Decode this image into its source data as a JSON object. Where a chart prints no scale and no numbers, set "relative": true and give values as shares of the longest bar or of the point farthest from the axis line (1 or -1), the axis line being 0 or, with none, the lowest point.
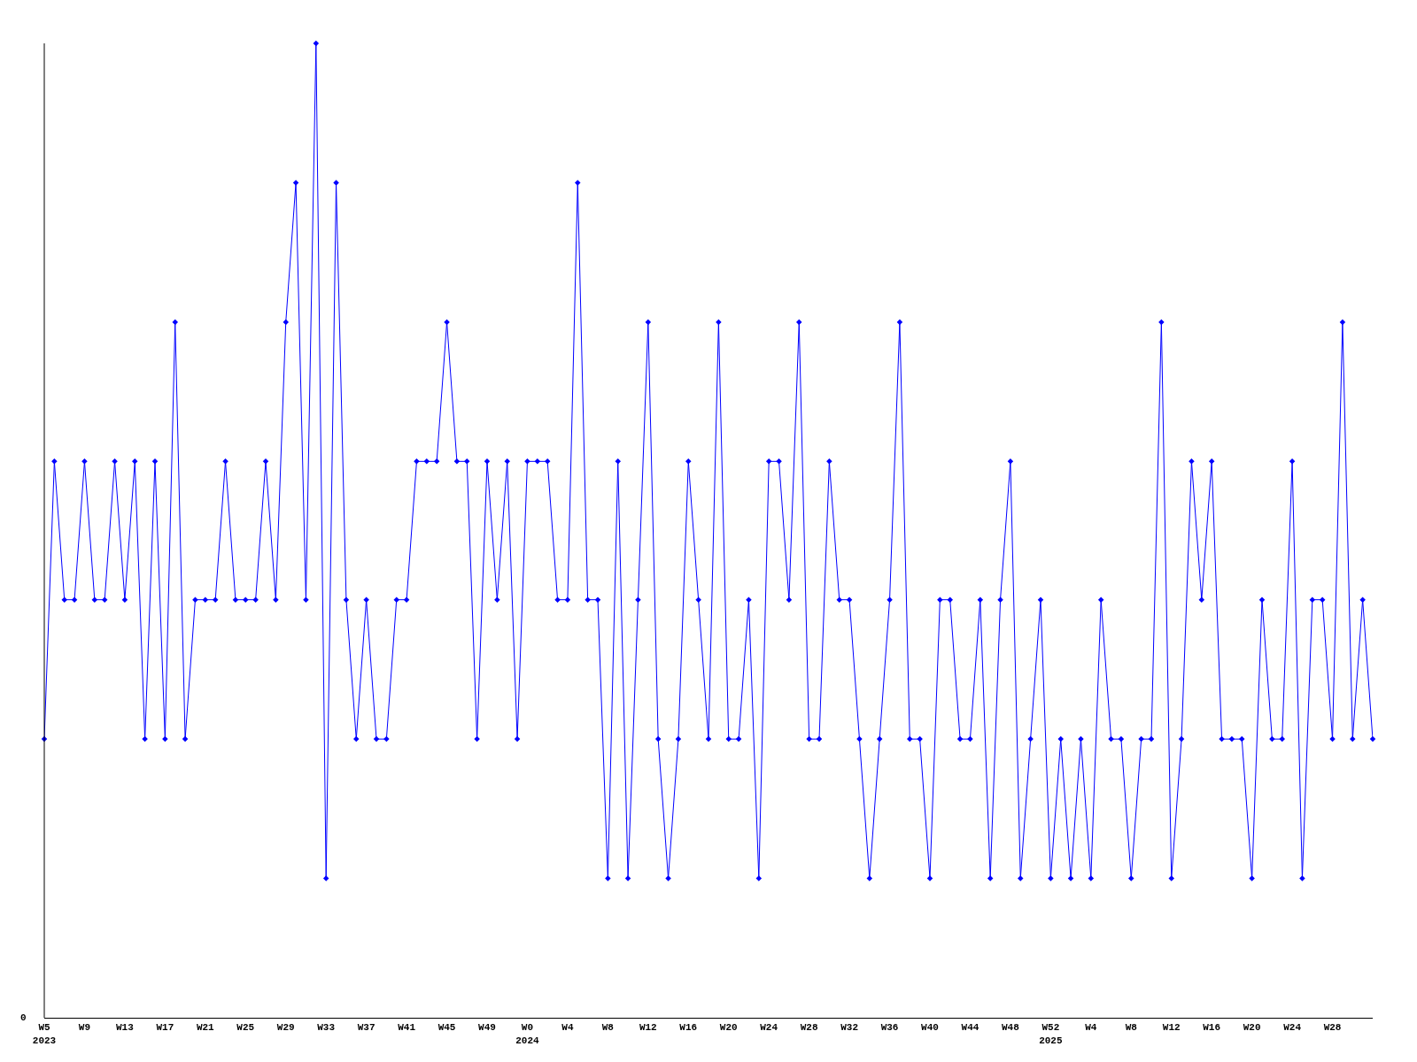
{
  "chart_data": {
    "type": "line",
    "relative": true,
    "color": "#0000ff",
    "marker": "diamond",
    "line_style": "solid",
    "grid": false,
    "annotations": [
      "0"
    ],
    "categories": [
      "W5\n2023",
      null,
      null,
      null,
      "W9",
      null,
      null,
      null,
      "W13",
      null,
      null,
      null,
      "W17",
      null,
      null,
      null,
      "W21",
      null,
      null,
      null,
      "W25",
      null,
      null,
      null,
      "W29",
      null,
      null,
      null,
      "W33",
      null,
      null,
      null,
      "W37",
      null,
      null,
      null,
      "W41",
      null,
      null,
      null,
      "W45",
      null,
      null,
      null,
      "W49",
      null,
      null,
      null,
      "W0\n2024",
      null,
      null,
      null,
      "W4",
      null,
      null,
      null,
      "W8",
      null,
      null,
      null,
      "W12",
      null,
      null,
      null,
      "W16",
      null,
      null,
      null,
      "W20",
      null,
      null,
      null,
      "W24",
      null,
      null,
      null,
      "W28",
      null,
      null,
      null,
      "W32",
      null,
      null,
      null,
      "W36",
      null,
      null,
      null,
      "W40",
      null,
      null,
      null,
      "W44",
      null,
      null,
      null,
      "W48",
      null,
      null,
      null,
      "W52\n2025",
      null,
      null,
      null,
      "W4",
      null,
      null,
      null,
      "W8",
      null,
      null,
      null,
      "W12",
      null,
      null,
      null,
      "W16",
      null,
      null,
      null,
      "W20",
      null,
      null,
      null,
      "W24",
      null,
      null,
      null,
      "W28",
      null,
      null,
      null,
      null
    ],
    "values": [
      0.286,
      0.571,
      0.429,
      0.429,
      0.571,
      0.429,
      0.429,
      0.571,
      0.429,
      0.571,
      0.286,
      0.571,
      0.286,
      0.714,
      0.286,
      0.429,
      0.429,
      0.429,
      0.571,
      0.429,
      0.429,
      0.429,
      0.571,
      0.429,
      0.714,
      0.857,
      0.429,
      1,
      0.143,
      0.857,
      0.429,
      0.286,
      0.429,
      0.286,
      0.286,
      0.429,
      0.429,
      0.571,
      0.571,
      0.571,
      0.714,
      0.571,
      0.571,
      0.286,
      0.571,
      0.429,
      0.571,
      0.286,
      0.571,
      0.571,
      0.571,
      0.429,
      0.429,
      0.857,
      0.429,
      0.429,
      0.143,
      0.571,
      0.143,
      0.429,
      0.714,
      0.286,
      0.143,
      0.286,
      0.571,
      0.429,
      0.286,
      0.714,
      0.286,
      0.286,
      0.429,
      0.143,
      0.571,
      0.571,
      0.429,
      0.714,
      0.286,
      0.286,
      0.571,
      0.429,
      0.429,
      0.286,
      0.143,
      0.286,
      0.429,
      0.714,
      0.286,
      0.286,
      0.143,
      0.429,
      0.429,
      0.286,
      0.286,
      0.429,
      0.143,
      0.429,
      0.571,
      0.143,
      0.286,
      0.429,
      0.143,
      0.286,
      0.143,
      0.286,
      0.143,
      0.429,
      0.286,
      0.286,
      0.143,
      0.286,
      0.286,
      0.714,
      0.143,
      0.286,
      0.571,
      0.429,
      0.571,
      0.286,
      0.286,
      0.286,
      0.143,
      0.429,
      0.286,
      0.286,
      0.571,
      0.143,
      0.429,
      0.429,
      0.286,
      0.714,
      0.286,
      0.429,
      0.286
    ]
  }
}
